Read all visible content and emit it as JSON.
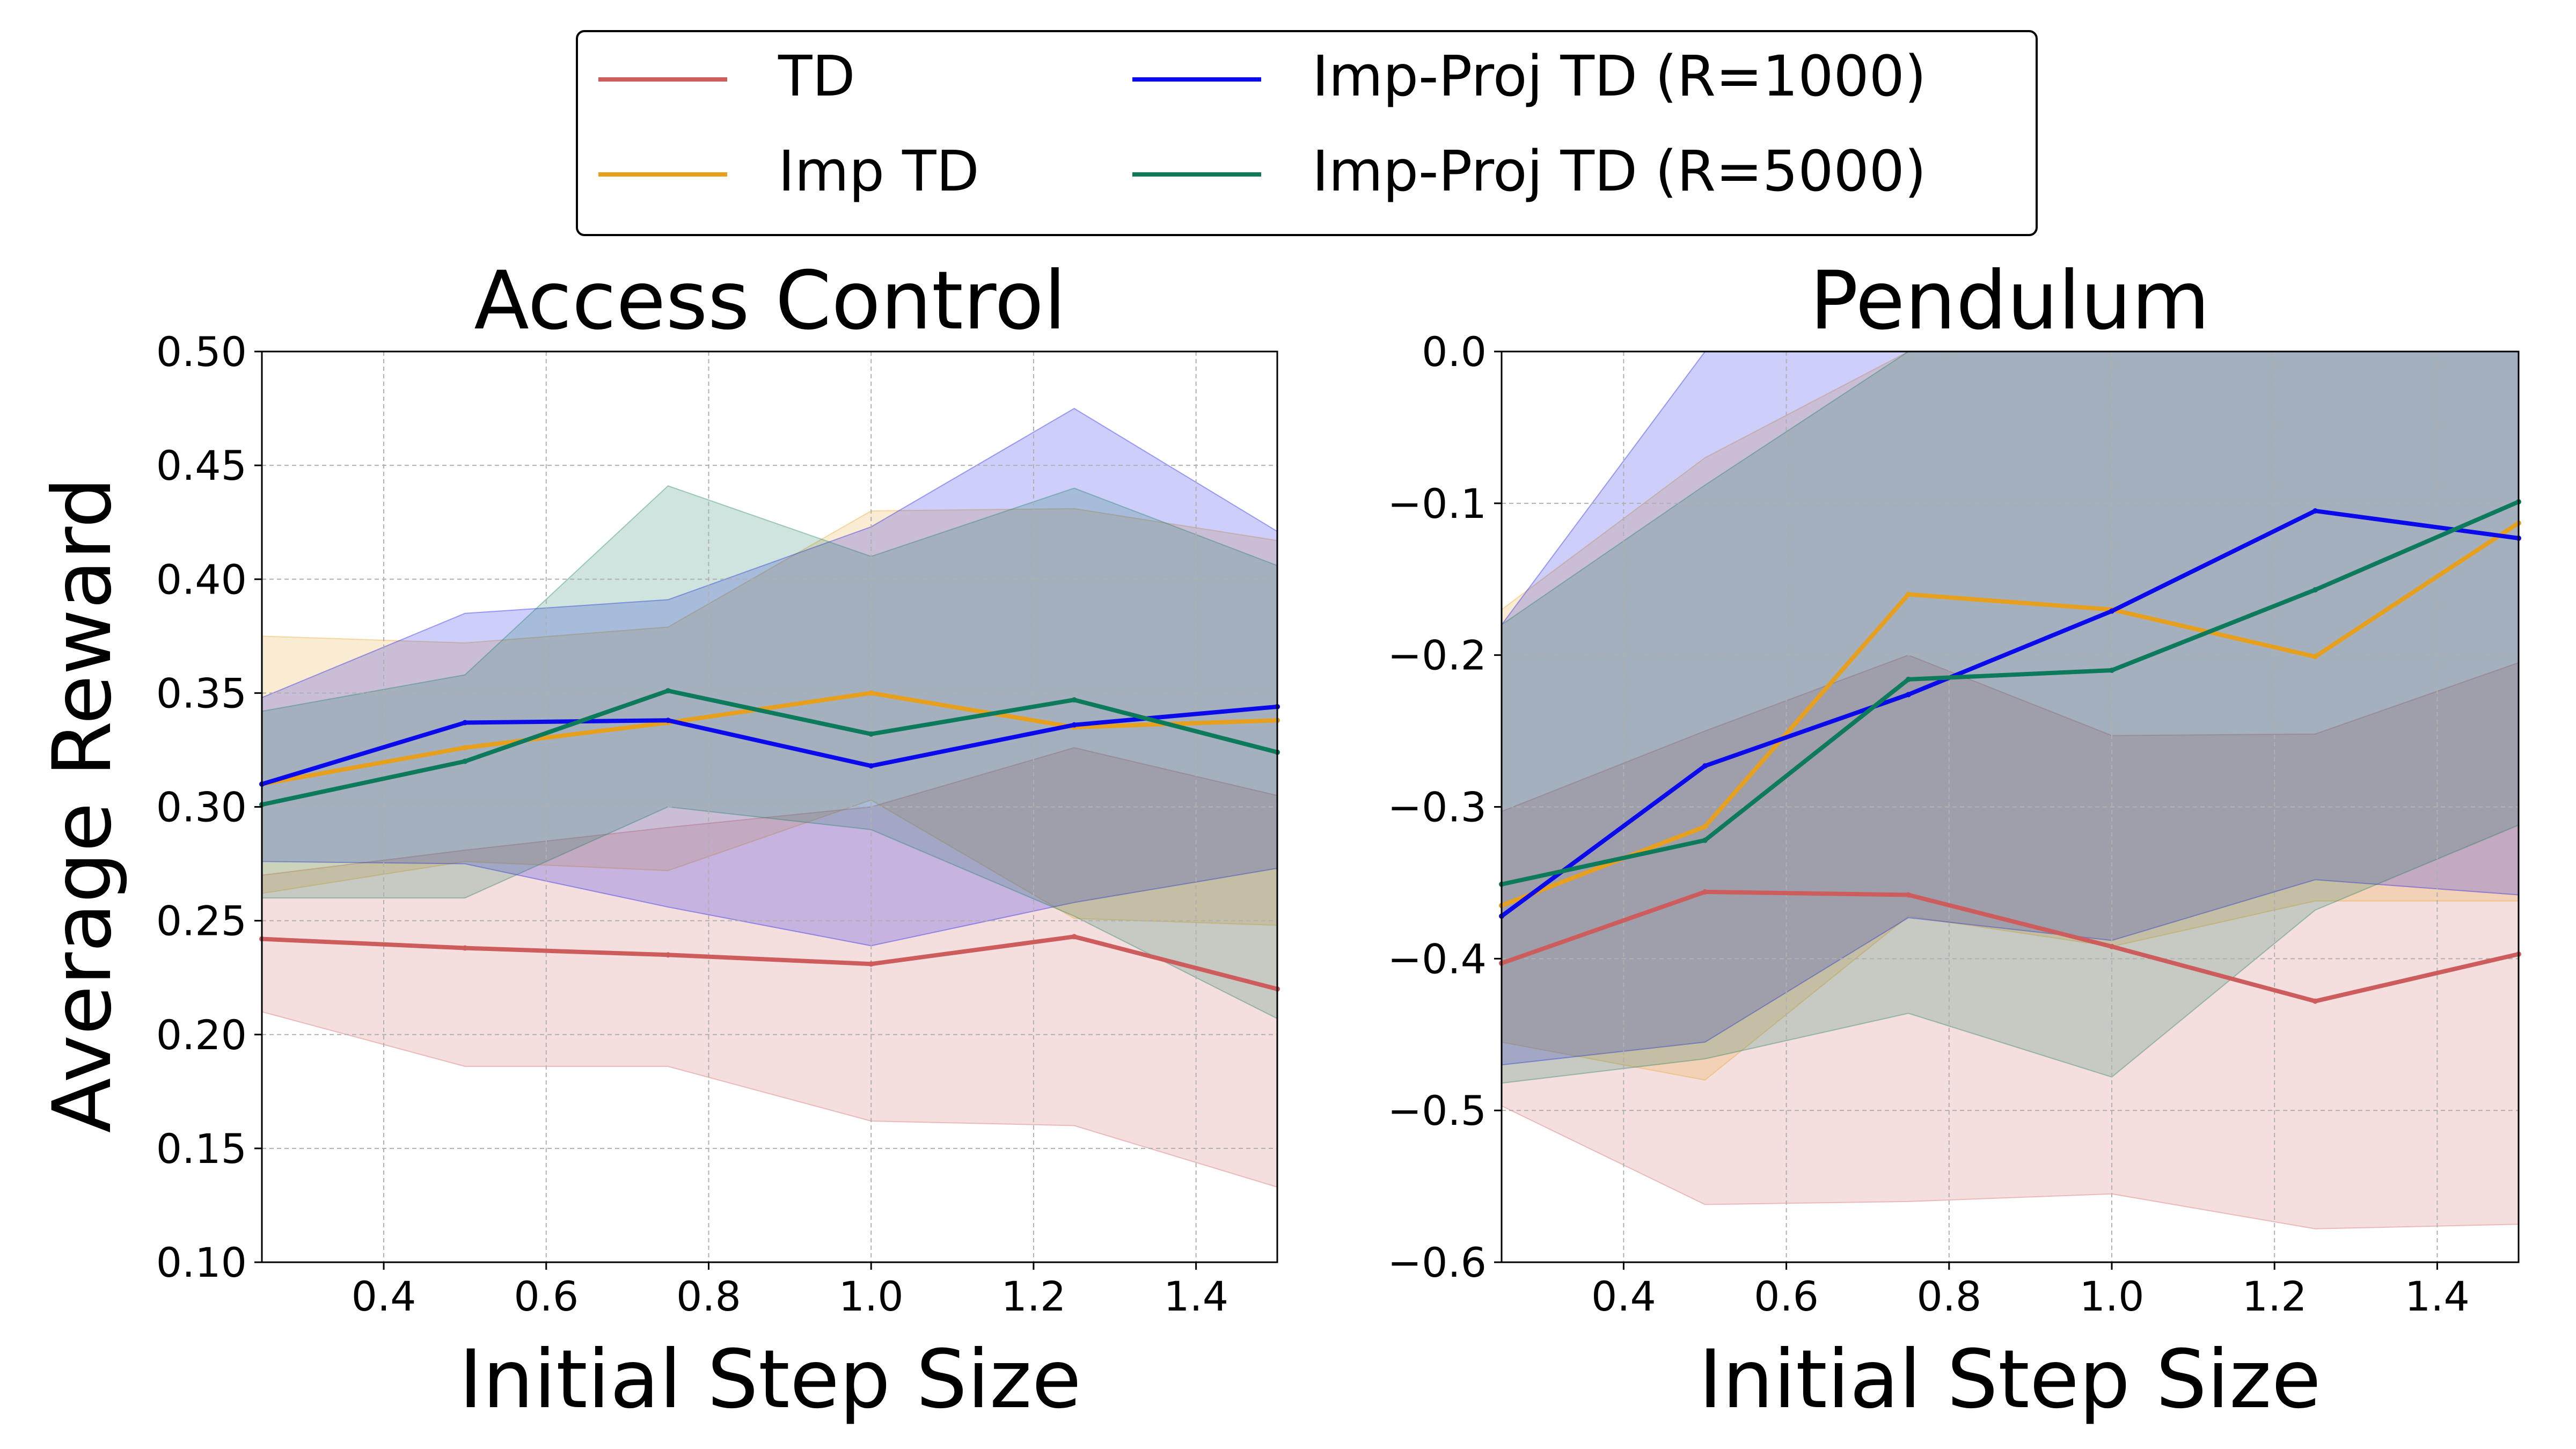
{
  "legend": {
    "entries": [
      {
        "label": "TD",
        "color": "#cd5c5c"
      },
      {
        "label": "Imp TD",
        "color": "#e6a01e"
      },
      {
        "label": "Imp-Proj TD (R=1000)",
        "color": "#0a0aea"
      },
      {
        "label": "Imp-Proj TD (R=5000)",
        "color": "#0d7a5c"
      }
    ]
  },
  "y_shared_label": "Average Reward",
  "chart_data": [
    {
      "type": "line",
      "title": "Access Control",
      "xlabel": "Initial Step Size",
      "ylabel": "Average Reward",
      "xlim": [
        0.25,
        1.5
      ],
      "ylim": [
        0.1,
        0.5
      ],
      "xticks": [
        0.4,
        0.6,
        0.8,
        1.0,
        1.2,
        1.4
      ],
      "xtick_labels": [
        "0.4",
        "0.6",
        "0.8",
        "1.0",
        "1.2",
        "1.4"
      ],
      "yticks": [
        0.1,
        0.15,
        0.2,
        0.25,
        0.3,
        0.35,
        0.4,
        0.45,
        0.5
      ],
      "ytick_labels": [
        "0.10",
        "0.15",
        "0.20",
        "0.25",
        "0.30",
        "0.35",
        "0.40",
        "0.45",
        "0.50"
      ],
      "grid": true,
      "x": [
        0.25,
        0.5,
        0.75,
        1.0,
        1.25,
        1.5
      ],
      "series": [
        {
          "name": "TD",
          "color": "#cd5c5c",
          "values": [
            0.242,
            0.238,
            0.235,
            0.231,
            0.243,
            0.22
          ],
          "lower": [
            0.21,
            0.186,
            0.186,
            0.162,
            0.16,
            0.133
          ],
          "upper": [
            0.27,
            0.281,
            0.291,
            0.3,
            0.326,
            0.305
          ]
        },
        {
          "name": "Imp TD",
          "color": "#e6a01e",
          "values": [
            0.31,
            0.326,
            0.337,
            0.35,
            0.335,
            0.338
          ],
          "lower": [
            0.262,
            0.276,
            0.272,
            0.303,
            0.251,
            0.248
          ],
          "upper": [
            0.375,
            0.372,
            0.379,
            0.43,
            0.431,
            0.417
          ]
        },
        {
          "name": "Imp-Proj TD (R=1000)",
          "color": "#0a0aea",
          "values": [
            0.31,
            0.337,
            0.338,
            0.318,
            0.336,
            0.344
          ],
          "lower": [
            0.276,
            0.275,
            0.256,
            0.239,
            0.258,
            0.273
          ],
          "upper": [
            0.348,
            0.385,
            0.391,
            0.423,
            0.475,
            0.421
          ]
        },
        {
          "name": "Imp-Proj TD (R=5000)",
          "color": "#0d7a5c",
          "values": [
            0.301,
            0.32,
            0.351,
            0.332,
            0.347,
            0.324
          ],
          "lower": [
            0.26,
            0.26,
            0.3,
            0.29,
            0.252,
            0.207
          ],
          "upper": [
            0.342,
            0.358,
            0.441,
            0.41,
            0.44,
            0.406
          ]
        }
      ]
    },
    {
      "type": "line",
      "title": "Pendulum",
      "xlabel": "Initial Step Size",
      "ylabel": "",
      "xlim": [
        0.25,
        1.5
      ],
      "ylim": [
        -0.6,
        0.0
      ],
      "xticks": [
        0.4,
        0.6,
        0.8,
        1.0,
        1.2,
        1.4
      ],
      "xtick_labels": [
        "0.4",
        "0.6",
        "0.8",
        "1.0",
        "1.2",
        "1.4"
      ],
      "yticks": [
        -0.6,
        -0.5,
        -0.4,
        -0.3,
        -0.2,
        -0.1,
        0.0
      ],
      "ytick_labels": [
        "−0.6",
        "−0.5",
        "−0.4",
        "−0.3",
        "−0.2",
        "−0.1",
        "0.0"
      ],
      "grid": true,
      "x": [
        0.25,
        0.5,
        0.75,
        1.0,
        1.25,
        1.5
      ],
      "series": [
        {
          "name": "TD",
          "color": "#cd5c5c",
          "values": [
            -0.403,
            -0.356,
            -0.358,
            -0.392,
            -0.428,
            -0.397
          ],
          "lower": [
            -0.497,
            -0.562,
            -0.56,
            -0.555,
            -0.578,
            -0.575
          ],
          "upper": [
            -0.303,
            -0.25,
            -0.2,
            -0.253,
            -0.252,
            -0.205
          ]
        },
        {
          "name": "Imp TD",
          "color": "#e6a01e",
          "values": [
            -0.365,
            -0.313,
            -0.16,
            -0.17,
            -0.201,
            -0.113
          ],
          "lower": [
            -0.455,
            -0.48,
            -0.372,
            -0.392,
            -0.362,
            -0.362
          ],
          "upper": [
            -0.17,
            -0.07,
            0.0,
            0.0,
            0.0,
            0.0
          ]
        },
        {
          "name": "Imp-Proj TD (R=1000)",
          "color": "#0a0aea",
          "values": [
            -0.372,
            -0.273,
            -0.226,
            -0.171,
            -0.105,
            -0.123
          ],
          "lower": [
            -0.47,
            -0.455,
            -0.373,
            -0.388,
            -0.348,
            -0.358
          ],
          "upper": [
            -0.18,
            0.0,
            0.0,
            0.0,
            0.0,
            0.0
          ]
        },
        {
          "name": "Imp-Proj TD (R=5000)",
          "color": "#0d7a5c",
          "values": [
            -0.351,
            -0.322,
            -0.216,
            -0.21,
            -0.157,
            -0.099
          ],
          "lower": [
            -0.482,
            -0.466,
            -0.436,
            -0.478,
            -0.368,
            -0.312
          ],
          "upper": [
            -0.18,
            -0.088,
            0.0,
            0.0,
            0.0,
            0.0
          ]
        }
      ]
    }
  ]
}
